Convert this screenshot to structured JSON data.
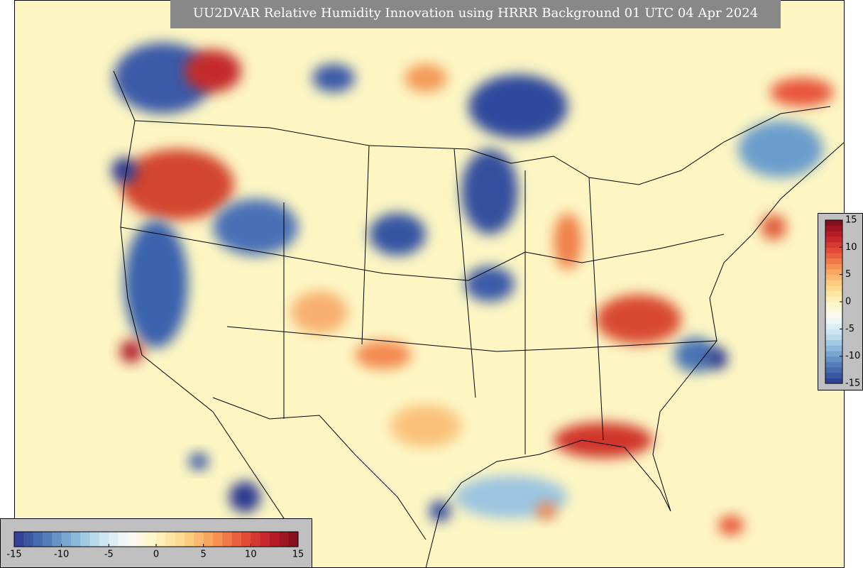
{
  "title": "UU2DVAR Relative Humidity Innovation using HRRR Background 01 UTC 04 Apr 2024",
  "colorbar": {
    "range": [
      -15,
      15
    ],
    "ticks": [
      -15,
      -10,
      -5,
      0,
      5,
      10,
      15
    ],
    "colors": [
      "#2b3990",
      "#4a74b4",
      "#7fb1d6",
      "#c6e2ef",
      "#f8fafa",
      "#fef6c0",
      "#fdd487",
      "#f99c58",
      "#e8553a",
      "#c11f2a",
      "#7a0c1c"
    ]
  }
}
